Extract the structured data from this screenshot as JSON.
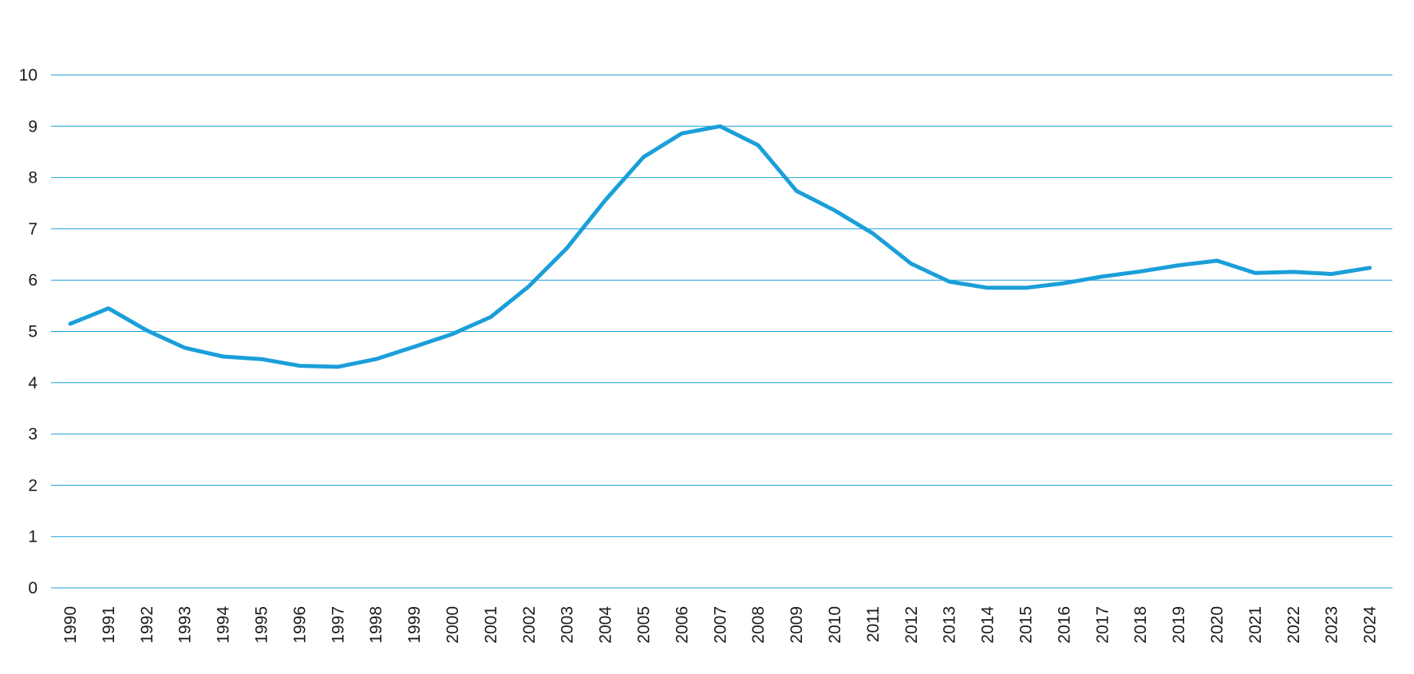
{
  "chart_data": {
    "type": "line",
    "title": "",
    "xlabel": "",
    "ylabel": "",
    "x": [
      "1990",
      "1991",
      "1992",
      "1993",
      "1994",
      "1995",
      "1996",
      "1997",
      "1998",
      "1999",
      "2000",
      "2001",
      "2002",
      "2003",
      "2004",
      "2005",
      "2006",
      "2007",
      "2008",
      "2009",
      "2010",
      "2011",
      "2012",
      "2013",
      "2014",
      "2015",
      "2016",
      "2017",
      "2018",
      "2019",
      "2020",
      "2021",
      "2022",
      "2023",
      "2024"
    ],
    "series": [
      {
        "values": [
          5.15,
          5.45,
          5.02,
          4.68,
          4.51,
          4.46,
          4.33,
          4.31,
          4.46,
          4.7,
          4.95,
          5.28,
          5.88,
          6.63,
          7.56,
          8.4,
          8.86,
          9.0,
          8.63,
          7.74,
          7.36,
          6.91,
          6.32,
          5.97,
          5.85,
          5.85,
          5.94,
          6.07,
          6.17,
          6.29,
          6.38,
          6.14,
          6.16,
          6.12,
          6.24
        ]
      }
    ],
    "ylim": [
      0,
      10
    ],
    "yticks": [
      "0",
      "1",
      "2",
      "3",
      "4",
      "5",
      "6",
      "7",
      "8",
      "9",
      "10"
    ],
    "grid": true,
    "legend": "none",
    "colors": {
      "line": "#1a9fd9",
      "grid": "#1a9fd9",
      "text": "#1a1a1a"
    }
  }
}
